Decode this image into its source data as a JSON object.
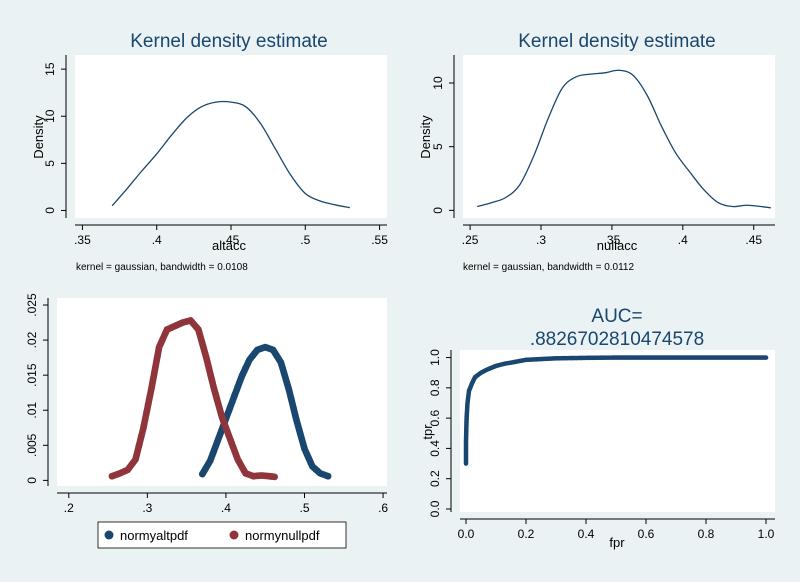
{
  "colors": {
    "background": "#eaf2f3",
    "plot_area": "#ffffff",
    "title": "#1a476f",
    "kde_line": "#1a476f",
    "alt_pdf": "#1a476f",
    "null_pdf": "#90353b",
    "roc": "#1a476f",
    "axis": "#000000"
  },
  "chart_data": [
    {
      "id": "kde-altacc",
      "type": "line",
      "title": "Kernel density estimate",
      "xlabel": "altacc",
      "ylabel": "Density",
      "note": "kernel = gaussian, bandwidth = 0.0108",
      "xlim": [
        0.345,
        0.555
      ],
      "ylim": [
        -0.8,
        16.5
      ],
      "xticks": [
        0.35,
        0.4,
        0.45,
        0.5,
        0.55
      ],
      "xtick_labels": [
        ".35",
        ".4",
        ".45",
        ".5",
        ".55"
      ],
      "yticks": [
        0,
        5,
        10,
        15
      ],
      "ytick_labels": [
        "0",
        "5",
        "10",
        "15"
      ],
      "series": [
        {
          "name": "density",
          "x": [
            0.37,
            0.38,
            0.39,
            0.4,
            0.41,
            0.42,
            0.43,
            0.44,
            0.45,
            0.46,
            0.47,
            0.48,
            0.49,
            0.5,
            0.51,
            0.52,
            0.53
          ],
          "y": [
            0.5,
            2.3,
            4.2,
            6.0,
            8.0,
            9.8,
            11.0,
            11.5,
            11.5,
            11.0,
            9.2,
            6.5,
            3.8,
            1.8,
            1.0,
            0.6,
            0.3
          ]
        }
      ]
    },
    {
      "id": "kde-nullacc",
      "type": "line",
      "title": "Kernel density estimate",
      "xlabel": "nullacc",
      "ylabel": "Density",
      "note": "kernel = gaussian, bandwidth = 0.0112",
      "xlim": [
        0.245,
        0.465
      ],
      "ylim": [
        -0.6,
        12.2
      ],
      "xticks": [
        0.25,
        0.3,
        0.35,
        0.4,
        0.45
      ],
      "xtick_labels": [
        ".25",
        ".3",
        ".35",
        ".4",
        ".45"
      ],
      "yticks": [
        0,
        5,
        10
      ],
      "ytick_labels": [
        "0",
        "5",
        "10"
      ],
      "series": [
        {
          "name": "density",
          "x": [
            0.255,
            0.265,
            0.275,
            0.285,
            0.295,
            0.305,
            0.315,
            0.325,
            0.335,
            0.345,
            0.355,
            0.365,
            0.375,
            0.385,
            0.395,
            0.405,
            0.415,
            0.425,
            0.435,
            0.445,
            0.455,
            0.462
          ],
          "y": [
            0.3,
            0.6,
            1.0,
            2.0,
            4.3,
            7.2,
            9.6,
            10.5,
            10.7,
            10.8,
            11.0,
            10.6,
            9.0,
            6.6,
            4.5,
            3.0,
            1.6,
            0.6,
            0.3,
            0.4,
            0.3,
            0.2
          ]
        }
      ]
    },
    {
      "id": "normal-pdfs",
      "type": "scatter",
      "title": "",
      "xlabel": "",
      "ylabel": "",
      "xlim": [
        0.185,
        0.605
      ],
      "ylim": [
        -0.0008,
        0.026
      ],
      "xticks": [
        0.2,
        0.3,
        0.4,
        0.5,
        0.6
      ],
      "xtick_labels": [
        ".2",
        ".3",
        ".4",
        ".5",
        ".6"
      ],
      "yticks": [
        0,
        0.005,
        0.01,
        0.015,
        0.02,
        0.025
      ],
      "ytick_labels": [
        "0",
        ".005",
        ".01",
        ".015",
        ".02",
        ".025"
      ],
      "legend": {
        "position": "bottom"
      },
      "series": [
        {
          "name": "normyaltpdf",
          "x": [
            0.37,
            0.38,
            0.39,
            0.4,
            0.41,
            0.42,
            0.43,
            0.44,
            0.45,
            0.46,
            0.47,
            0.48,
            0.49,
            0.5,
            0.51,
            0.52,
            0.53
          ],
          "y": [
            0.0009,
            0.0028,
            0.0058,
            0.0088,
            0.0118,
            0.0148,
            0.0172,
            0.0186,
            0.019,
            0.0186,
            0.0168,
            0.013,
            0.0085,
            0.0045,
            0.002,
            0.001,
            0.0006
          ]
        },
        {
          "name": "normynullpdf",
          "x": [
            0.255,
            0.265,
            0.275,
            0.285,
            0.295,
            0.305,
            0.315,
            0.325,
            0.335,
            0.345,
            0.355,
            0.365,
            0.375,
            0.385,
            0.395,
            0.405,
            0.415,
            0.425,
            0.435,
            0.445,
            0.455,
            0.462
          ],
          "y": [
            0.0006,
            0.001,
            0.0015,
            0.003,
            0.0075,
            0.013,
            0.019,
            0.0215,
            0.022,
            0.0225,
            0.0228,
            0.0215,
            0.0175,
            0.013,
            0.009,
            0.006,
            0.003,
            0.001,
            0.0006,
            0.0007,
            0.0006,
            0.0005
          ]
        }
      ]
    },
    {
      "id": "roc-curve",
      "type": "scatter",
      "title": "AUC=",
      "subtitle": ".8826702810474578",
      "xlabel": "fpr",
      "ylabel": "tpr",
      "xlim": [
        -0.02,
        1.03
      ],
      "ylim": [
        -0.02,
        1.05
      ],
      "xticks": [
        0,
        0.2,
        0.4,
        0.6,
        0.8,
        1
      ],
      "xtick_labels": [
        "0.0",
        "0.2",
        "0.4",
        "0.6",
        "0.8",
        "1.0"
      ],
      "yticks": [
        0,
        0.2,
        0.4,
        0.6,
        0.8,
        1
      ],
      "ytick_labels": [
        "0.0",
        "0.2",
        "0.4",
        "0.6",
        "0.8",
        "1.0"
      ],
      "series": [
        {
          "name": "roc",
          "x": [
            0,
            0,
            0.002,
            0.005,
            0.01,
            0.02,
            0.03,
            0.05,
            0.07,
            0.1,
            0.13,
            0.16,
            0.2,
            0.25,
            0.3,
            0.4,
            0.5,
            0.6,
            0.7,
            0.8,
            0.9,
            1.0
          ],
          "y": [
            0.3,
            0.45,
            0.6,
            0.7,
            0.78,
            0.83,
            0.87,
            0.9,
            0.92,
            0.945,
            0.96,
            0.97,
            0.985,
            0.99,
            0.995,
            0.998,
            1.0,
            1.0,
            1.0,
            1.0,
            1.0,
            1.0
          ]
        }
      ]
    }
  ]
}
